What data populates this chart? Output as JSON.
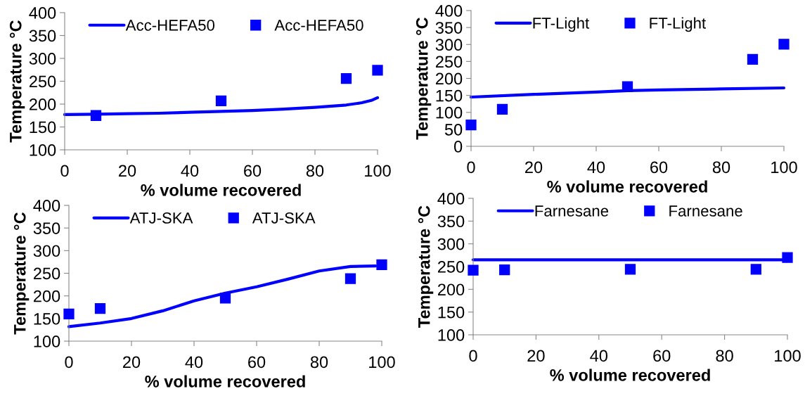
{
  "chart_data": [
    {
      "type": "line",
      "xlabel": "% volume recovered",
      "ylabel": "Temperature °C",
      "xlim": [
        0,
        100
      ],
      "xticks": [
        0,
        20,
        40,
        60,
        80,
        100
      ],
      "ylim": [
        100,
        400
      ],
      "yticks": [
        100,
        150,
        200,
        250,
        300,
        350,
        400
      ],
      "legend": "top left",
      "grid": false,
      "series": [
        {
          "name": "Acc-HEFA50",
          "color": "#0000ff",
          "marker": "none",
          "x": [
            0,
            10,
            20,
            30,
            40,
            50,
            60,
            70,
            80,
            90,
            95,
            98,
            100
          ],
          "values": [
            177,
            178,
            179,
            180,
            182,
            184,
            186,
            189,
            193,
            198,
            203,
            208,
            214
          ]
        },
        {
          "name": "Acc-HEFA50",
          "type": "scatter",
          "color": "#0000ff",
          "marker": "square",
          "x": [
            10,
            50,
            90,
            100
          ],
          "values": [
            175,
            207,
            256,
            274
          ]
        }
      ]
    },
    {
      "type": "line",
      "xlabel": "% volume recovered",
      "ylabel": "Temperature °C",
      "xlim": [
        0,
        100
      ],
      "xticks": [
        0,
        20,
        40,
        60,
        80,
        100
      ],
      "ylim": [
        0,
        400
      ],
      "yticks": [
        0,
        50,
        100,
        150,
        200,
        250,
        300,
        350,
        400
      ],
      "legend": "top left",
      "grid": false,
      "series": [
        {
          "name": "FT-Light",
          "color": "#0000ff",
          "marker": "none",
          "x": [
            0,
            20,
            40,
            50,
            60,
            80,
            100
          ],
          "values": [
            145,
            153,
            160,
            164,
            166,
            169,
            172
          ]
        },
        {
          "name": "FT-Light",
          "type": "scatter",
          "color": "#0000ff",
          "marker": "square",
          "x": [
            0,
            10,
            50,
            90,
            100
          ],
          "values": [
            63,
            109,
            176,
            256,
            301
          ]
        }
      ]
    },
    {
      "type": "line",
      "xlabel": "% volume recovered",
      "ylabel": "Temperature °C",
      "xlim": [
        0,
        100
      ],
      "xticks": [
        0,
        20,
        40,
        60,
        80,
        100
      ],
      "ylim": [
        100,
        400
      ],
      "yticks": [
        100,
        150,
        200,
        250,
        300,
        350,
        400
      ],
      "legend": "top left",
      "grid": false,
      "series": [
        {
          "name": "ATJ-SKA",
          "color": "#0000ff",
          "marker": "none",
          "x": [
            0,
            10,
            20,
            30,
            40,
            50,
            60,
            70,
            80,
            90,
            98
          ],
          "values": [
            132,
            140,
            150,
            167,
            189,
            206,
            220,
            237,
            255,
            265,
            266
          ]
        },
        {
          "name": "ATJ-SKA",
          "type": "scatter",
          "color": "#0000ff",
          "marker": "square",
          "x": [
            0,
            10,
            50,
            90,
            100
          ],
          "values": [
            160,
            172,
            195,
            238,
            269
          ]
        }
      ]
    },
    {
      "type": "line",
      "xlabel": "% volume recovered",
      "ylabel": "Temperature °C",
      "xlim": [
        0,
        100
      ],
      "xticks": [
        0,
        20,
        40,
        60,
        80,
        100
      ],
      "ylim": [
        100,
        400
      ],
      "yticks": [
        100,
        150,
        200,
        250,
        300,
        350,
        400
      ],
      "legend": "top left",
      "grid": false,
      "series": [
        {
          "name": "Farnesane",
          "color": "#0000ff",
          "marker": "none",
          "x": [
            0,
            100
          ],
          "values": [
            265,
            265
          ]
        },
        {
          "name": "Farnesane",
          "type": "scatter",
          "color": "#0000ff",
          "marker": "square",
          "x": [
            0,
            10,
            50,
            90,
            100
          ],
          "values": [
            242,
            243,
            244,
            244,
            270
          ]
        }
      ]
    }
  ]
}
